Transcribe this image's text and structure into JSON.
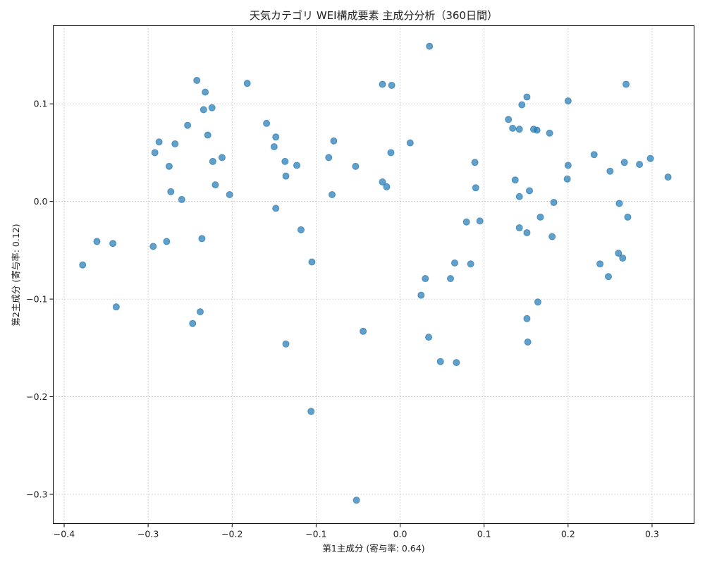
{
  "chart_data": {
    "type": "scatter",
    "title": "天気カテゴリ WEI構成要素 主成分分析（360日間）",
    "xlabel": "第1主成分 (寄与率: 0.64)",
    "ylabel": "第2主成分 (寄与率: 0.12)",
    "xlim": [
      -0.413,
      0.35
    ],
    "ylim": [
      -0.33,
      0.18
    ],
    "xticks": [
      -0.4,
      -0.3,
      -0.2,
      -0.1,
      0.0,
      0.1,
      0.2,
      0.3
    ],
    "xtick_labels": [
      "−0.4",
      "−0.3",
      "−0.2",
      "−0.1",
      "0.0",
      "0.1",
      "0.2",
      "0.3"
    ],
    "yticks": [
      -0.3,
      -0.2,
      -0.1,
      0.0,
      0.1
    ],
    "ytick_labels": [
      "−0.3",
      "−0.2",
      "−0.1",
      "0.0",
      "0.1"
    ],
    "grid": true,
    "marker_color": "#1f77b4",
    "marker_opacity": 0.7,
    "points": [
      [
        -0.378,
        -0.065
      ],
      [
        -0.361,
        -0.041
      ],
      [
        -0.342,
        -0.043
      ],
      [
        -0.338,
        -0.108
      ],
      [
        -0.294,
        -0.046
      ],
      [
        -0.292,
        0.05
      ],
      [
        -0.287,
        0.061
      ],
      [
        -0.278,
        -0.041
      ],
      [
        -0.275,
        0.036
      ],
      [
        -0.273,
        0.01
      ],
      [
        -0.268,
        0.059
      ],
      [
        -0.26,
        0.002
      ],
      [
        -0.253,
        0.078
      ],
      [
        -0.247,
        -0.125
      ],
      [
        -0.242,
        0.124
      ],
      [
        -0.238,
        -0.113
      ],
      [
        -0.236,
        -0.038
      ],
      [
        -0.234,
        0.094
      ],
      [
        -0.232,
        0.112
      ],
      [
        -0.229,
        0.068
      ],
      [
        -0.224,
        0.096
      ],
      [
        -0.223,
        0.041
      ],
      [
        -0.22,
        0.017
      ],
      [
        -0.212,
        0.045
      ],
      [
        -0.203,
        0.007
      ],
      [
        -0.182,
        0.121
      ],
      [
        -0.159,
        0.08
      ],
      [
        -0.15,
        0.056
      ],
      [
        -0.148,
        0.066
      ],
      [
        -0.148,
        -0.007
      ],
      [
        -0.137,
        0.041
      ],
      [
        -0.136,
        0.026
      ],
      [
        -0.136,
        -0.146
      ],
      [
        -0.123,
        0.037
      ],
      [
        -0.118,
        -0.029
      ],
      [
        -0.106,
        -0.215
      ],
      [
        -0.105,
        -0.062
      ],
      [
        -0.085,
        0.045
      ],
      [
        -0.081,
        0.007
      ],
      [
        -0.079,
        0.062
      ],
      [
        -0.053,
        0.036
      ],
      [
        -0.052,
        -0.306
      ],
      [
        -0.044,
        -0.133
      ],
      [
        -0.021,
        0.02
      ],
      [
        -0.021,
        0.12
      ],
      [
        -0.016,
        0.015
      ],
      [
        -0.011,
        0.05
      ],
      [
        -0.01,
        0.119
      ],
      [
        0.012,
        0.06
      ],
      [
        0.025,
        -0.096
      ],
      [
        0.03,
        -0.079
      ],
      [
        0.034,
        -0.139
      ],
      [
        0.035,
        0.159
      ],
      [
        0.048,
        -0.164
      ],
      [
        0.06,
        -0.079
      ],
      [
        0.065,
        -0.063
      ],
      [
        0.067,
        -0.165
      ],
      [
        0.079,
        -0.021
      ],
      [
        0.084,
        -0.064
      ],
      [
        0.089,
        0.04
      ],
      [
        0.09,
        0.014
      ],
      [
        0.095,
        -0.02
      ],
      [
        0.129,
        0.084
      ],
      [
        0.134,
        0.075
      ],
      [
        0.137,
        0.022
      ],
      [
        0.142,
        0.005
      ],
      [
        0.142,
        0.074
      ],
      [
        0.142,
        -0.027
      ],
      [
        0.145,
        0.099
      ],
      [
        0.151,
        0.107
      ],
      [
        0.151,
        -0.032
      ],
      [
        0.151,
        -0.12
      ],
      [
        0.152,
        -0.144
      ],
      [
        0.154,
        0.011
      ],
      [
        0.159,
        0.074
      ],
      [
        0.163,
        0.073
      ],
      [
        0.164,
        -0.103
      ],
      [
        0.167,
        -0.016
      ],
      [
        0.178,
        0.07
      ],
      [
        0.181,
        -0.036
      ],
      [
        0.183,
        -0.001
      ],
      [
        0.199,
        0.023
      ],
      [
        0.2,
        0.103
      ],
      [
        0.2,
        0.037
      ],
      [
        0.231,
        0.048
      ],
      [
        0.238,
        -0.064
      ],
      [
        0.248,
        -0.077
      ],
      [
        0.25,
        0.031
      ],
      [
        0.26,
        -0.053
      ],
      [
        0.261,
        -0.002
      ],
      [
        0.265,
        -0.058
      ],
      [
        0.267,
        0.04
      ],
      [
        0.269,
        0.12
      ],
      [
        0.271,
        -0.016
      ],
      [
        0.285,
        0.038
      ],
      [
        0.298,
        0.044
      ],
      [
        0.319,
        0.025
      ]
    ]
  }
}
